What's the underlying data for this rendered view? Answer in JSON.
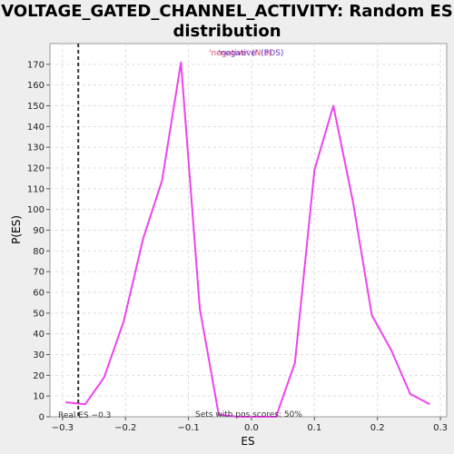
{
  "chart_data": {
    "type": "line",
    "title": "VOLTAGE_GATED_CHANNEL_ACTIVITY: Random ES distribution",
    "xlabel": "ES",
    "ylabel": "P(ES)",
    "xlim": [
      -0.32,
      0.31
    ],
    "ylim": [
      0,
      180
    ],
    "x_ticks": [
      -0.3,
      -0.2,
      -0.1,
      0.0,
      0.1,
      0.2,
      0.3
    ],
    "x_tick_labels": [
      "−0.3",
      "−0.2",
      "−0.1",
      "0.0",
      "0.1",
      "0.2",
      "0.3"
    ],
    "y_ticks": [
      0,
      10,
      20,
      30,
      40,
      50,
      60,
      70,
      80,
      90,
      100,
      110,
      120,
      130,
      140,
      150,
      160,
      170
    ],
    "grid": true,
    "series": [
      {
        "color": "#ee44ee",
        "x": [
          -0.295,
          -0.264,
          -0.234,
          -0.203,
          -0.172,
          -0.142,
          -0.112,
          -0.082,
          -0.052,
          -0.022,
          0.008,
          0.039,
          0.069,
          0.1,
          0.13,
          0.161,
          0.191,
          0.222,
          0.252,
          0.283
        ],
        "y": [
          7,
          6,
          19,
          46,
          86,
          114,
          171,
          52,
          1,
          0,
          0,
          0,
          26,
          119,
          150,
          104,
          49,
          32,
          11,
          6
        ]
      }
    ],
    "real_es": -0.275,
    "legend_text_a": "'negative' (N:5)",
    "legend_text_b": "'negative' (POS)",
    "legend_color_a": "#dd4466",
    "legend_color_b": "#6633cc",
    "real_es_label": "Real ES −0.3",
    "pos_scores_label": "Sets with pos scores: 50%"
  }
}
